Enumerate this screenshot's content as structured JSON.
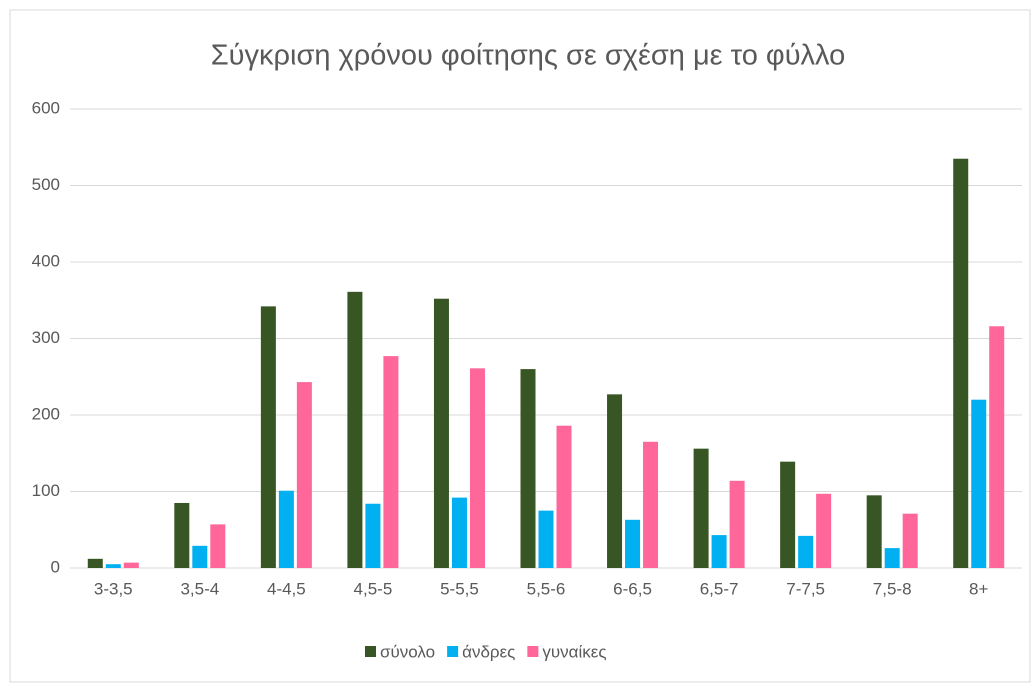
{
  "chart_data": {
    "type": "bar",
    "title": "Σύγκριση χρόνου φοίτησης σε σχέση με το φύλλο",
    "categories": [
      "3-3,5",
      "3,5-4",
      "4-4,5",
      "4,5-5",
      "5-5,5",
      "5,5-6",
      "6-6,5",
      "6,5-7",
      "7-7,5",
      "7,5-8",
      "8+"
    ],
    "series": [
      {
        "name": "σύνολο",
        "color": "#375623",
        "values": [
          12,
          85,
          342,
          361,
          352,
          260,
          227,
          156,
          139,
          95,
          535
        ]
      },
      {
        "name": "άνδρες",
        "color": "#00b0f0",
        "values": [
          5,
          29,
          101,
          84,
          92,
          75,
          63,
          43,
          42,
          26,
          220
        ]
      },
      {
        "name": "γυναίκες",
        "color": "#ff6699",
        "values": [
          7,
          57,
          243,
          277,
          261,
          186,
          165,
          114,
          97,
          71,
          316
        ]
      }
    ],
    "ylim": [
      0,
      600
    ],
    "yticks": [
      0,
      100,
      200,
      300,
      400,
      500,
      600
    ],
    "grid": true,
    "legend": "bottom"
  }
}
